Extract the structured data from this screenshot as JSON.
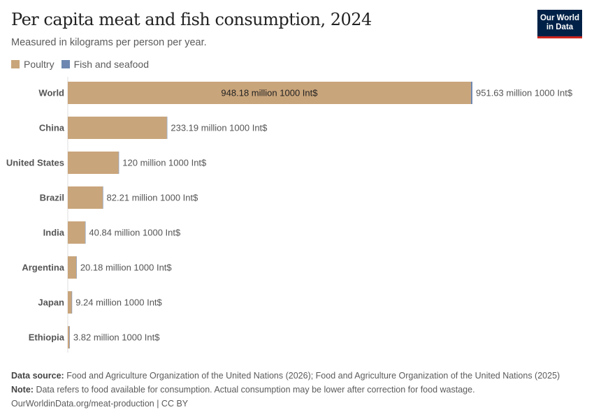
{
  "header": {
    "title": "Per capita meat and fish consumption, 2024",
    "subtitle": "Measured in kilograms per person per year.",
    "logo": "Our World in Data"
  },
  "legend": [
    {
      "label": "Poultry",
      "color": "#c9a57b"
    },
    {
      "label": "Fish and seafood",
      "color": "#6d87b0"
    }
  ],
  "chart_data": {
    "type": "bar",
    "orientation": "horizontal",
    "stacked": true,
    "title": "Per capita meat and fish consumption, 2024",
    "subtitle": "Measured in kilograms per person per year.",
    "categories": [
      "World",
      "China",
      "United States",
      "Brazil",
      "India",
      "Argentina",
      "Japan",
      "Ethiopia"
    ],
    "series": [
      {
        "name": "Poultry",
        "color": "#c9a57b",
        "values": [
          948.18,
          233.0,
          119.5,
          82.1,
          40.8,
          20.1,
          9.2,
          3.8
        ]
      },
      {
        "name": "Fish and seafood",
        "color": "#6d87b0",
        "values": [
          3.45,
          0.19,
          0.5,
          0.11,
          0.04,
          0.08,
          0.04,
          0.02
        ]
      }
    ],
    "inner_labels": [
      "948.18 million 1000 Int$",
      "",
      "",
      "",
      "",
      "",
      "",
      ""
    ],
    "total_labels": [
      "951.63 million 1000 Int$",
      "233.19 million 1000 Int$",
      "120 million 1000 Int$",
      "82.21 million 1000 Int$",
      "40.84 million 1000 Int$",
      "20.18 million 1000 Int$",
      "9.24 million 1000 Int$",
      "3.82 million 1000 Int$"
    ],
    "xlim": [
      0,
      951.63
    ],
    "grid": false,
    "legend_position": "top-left"
  },
  "footer": {
    "source_label": "Data source:",
    "source": "Food and Agriculture Organization of the United Nations (2026); Food and Agriculture Organization of the United Nations (2025)",
    "note_label": "Note:",
    "note": "Data refers to food available for consumption. Actual consumption may be lower after correction for food wastage.",
    "link": "OurWorldinData.org/meat-production | CC BY"
  }
}
